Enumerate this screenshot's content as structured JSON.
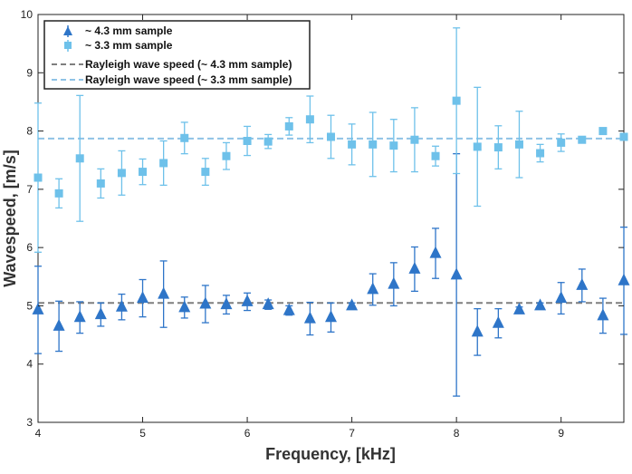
{
  "chart_data": {
    "type": "scatter",
    "title": "",
    "xlabel": "Frequency, [kHz]",
    "ylabel": "Wavespeed, [m/s]",
    "xlim": [
      4,
      9.6
    ],
    "ylim": [
      3,
      10
    ],
    "xticks": [
      4,
      5,
      6,
      7,
      8,
      9
    ],
    "yticks": [
      3,
      4,
      5,
      6,
      7,
      8,
      9,
      10
    ],
    "grid": false,
    "legend_position": "top-left",
    "series": [
      {
        "name": "~ 4.3 mm sample",
        "marker": "triangle",
        "color": "#2e75c8",
        "x": [
          4.0,
          4.2,
          4.4,
          4.6,
          4.8,
          5.0,
          5.2,
          5.4,
          5.6,
          5.8,
          6.0,
          6.2,
          6.4,
          6.6,
          6.8,
          7.0,
          7.2,
          7.4,
          7.6,
          7.8,
          8.0,
          8.2,
          8.4,
          8.6,
          8.8,
          9.0,
          9.2,
          9.4,
          9.6
        ],
        "y": [
          4.93,
          4.65,
          4.8,
          4.85,
          4.98,
          5.13,
          5.2,
          4.97,
          5.03,
          5.02,
          5.07,
          5.02,
          4.92,
          4.78,
          4.8,
          5.0,
          5.28,
          5.37,
          5.63,
          5.9,
          5.53,
          4.55,
          4.7,
          4.93,
          5.0,
          5.13,
          5.35,
          4.83,
          5.43
        ],
        "err": [
          0.75,
          0.43,
          0.27,
          0.2,
          0.22,
          0.32,
          0.57,
          0.18,
          0.32,
          0.16,
          0.15,
          0.08,
          0.08,
          0.28,
          0.25,
          0.05,
          0.27,
          0.37,
          0.38,
          0.43,
          2.08,
          0.4,
          0.25,
          0.05,
          0.05,
          0.27,
          0.28,
          0.3,
          0.92
        ]
      },
      {
        "name": "~ 3.3 mm sample",
        "marker": "square",
        "color": "#6ec1ea",
        "x": [
          4.0,
          4.2,
          4.4,
          4.6,
          4.8,
          5.0,
          5.2,
          5.4,
          5.6,
          5.8,
          6.0,
          6.2,
          6.4,
          6.6,
          6.8,
          7.0,
          7.2,
          7.4,
          7.6,
          7.8,
          8.0,
          8.2,
          8.4,
          8.6,
          8.8,
          9.0,
          9.2,
          9.4,
          9.6
        ],
        "y": [
          7.2,
          6.93,
          7.53,
          7.1,
          7.28,
          7.3,
          7.45,
          7.88,
          7.3,
          7.57,
          7.83,
          7.82,
          8.08,
          8.2,
          7.9,
          7.77,
          7.77,
          7.75,
          7.85,
          7.57,
          8.52,
          7.73,
          7.72,
          7.77,
          7.62,
          7.8,
          7.85,
          8.0,
          7.9
        ],
        "err": [
          1.28,
          0.25,
          1.08,
          0.25,
          0.38,
          0.22,
          0.38,
          0.27,
          0.23,
          0.23,
          0.25,
          0.12,
          0.15,
          0.4,
          0.37,
          0.35,
          0.55,
          0.45,
          0.55,
          0.17,
          1.25,
          1.02,
          0.37,
          0.57,
          0.15,
          0.15,
          0.05,
          0.05,
          0.05
        ]
      },
      {
        "name": "Rayleigh wave speed (~ 4.3 mm sample)",
        "line_style": "dashed",
        "color": "#7f7f7f",
        "y": 5.05
      },
      {
        "name": "Rayleigh wave speed (~ 3.3 mm sample)",
        "line_style": "dashed",
        "color": "#8fc3e6",
        "y": 7.87
      }
    ]
  }
}
